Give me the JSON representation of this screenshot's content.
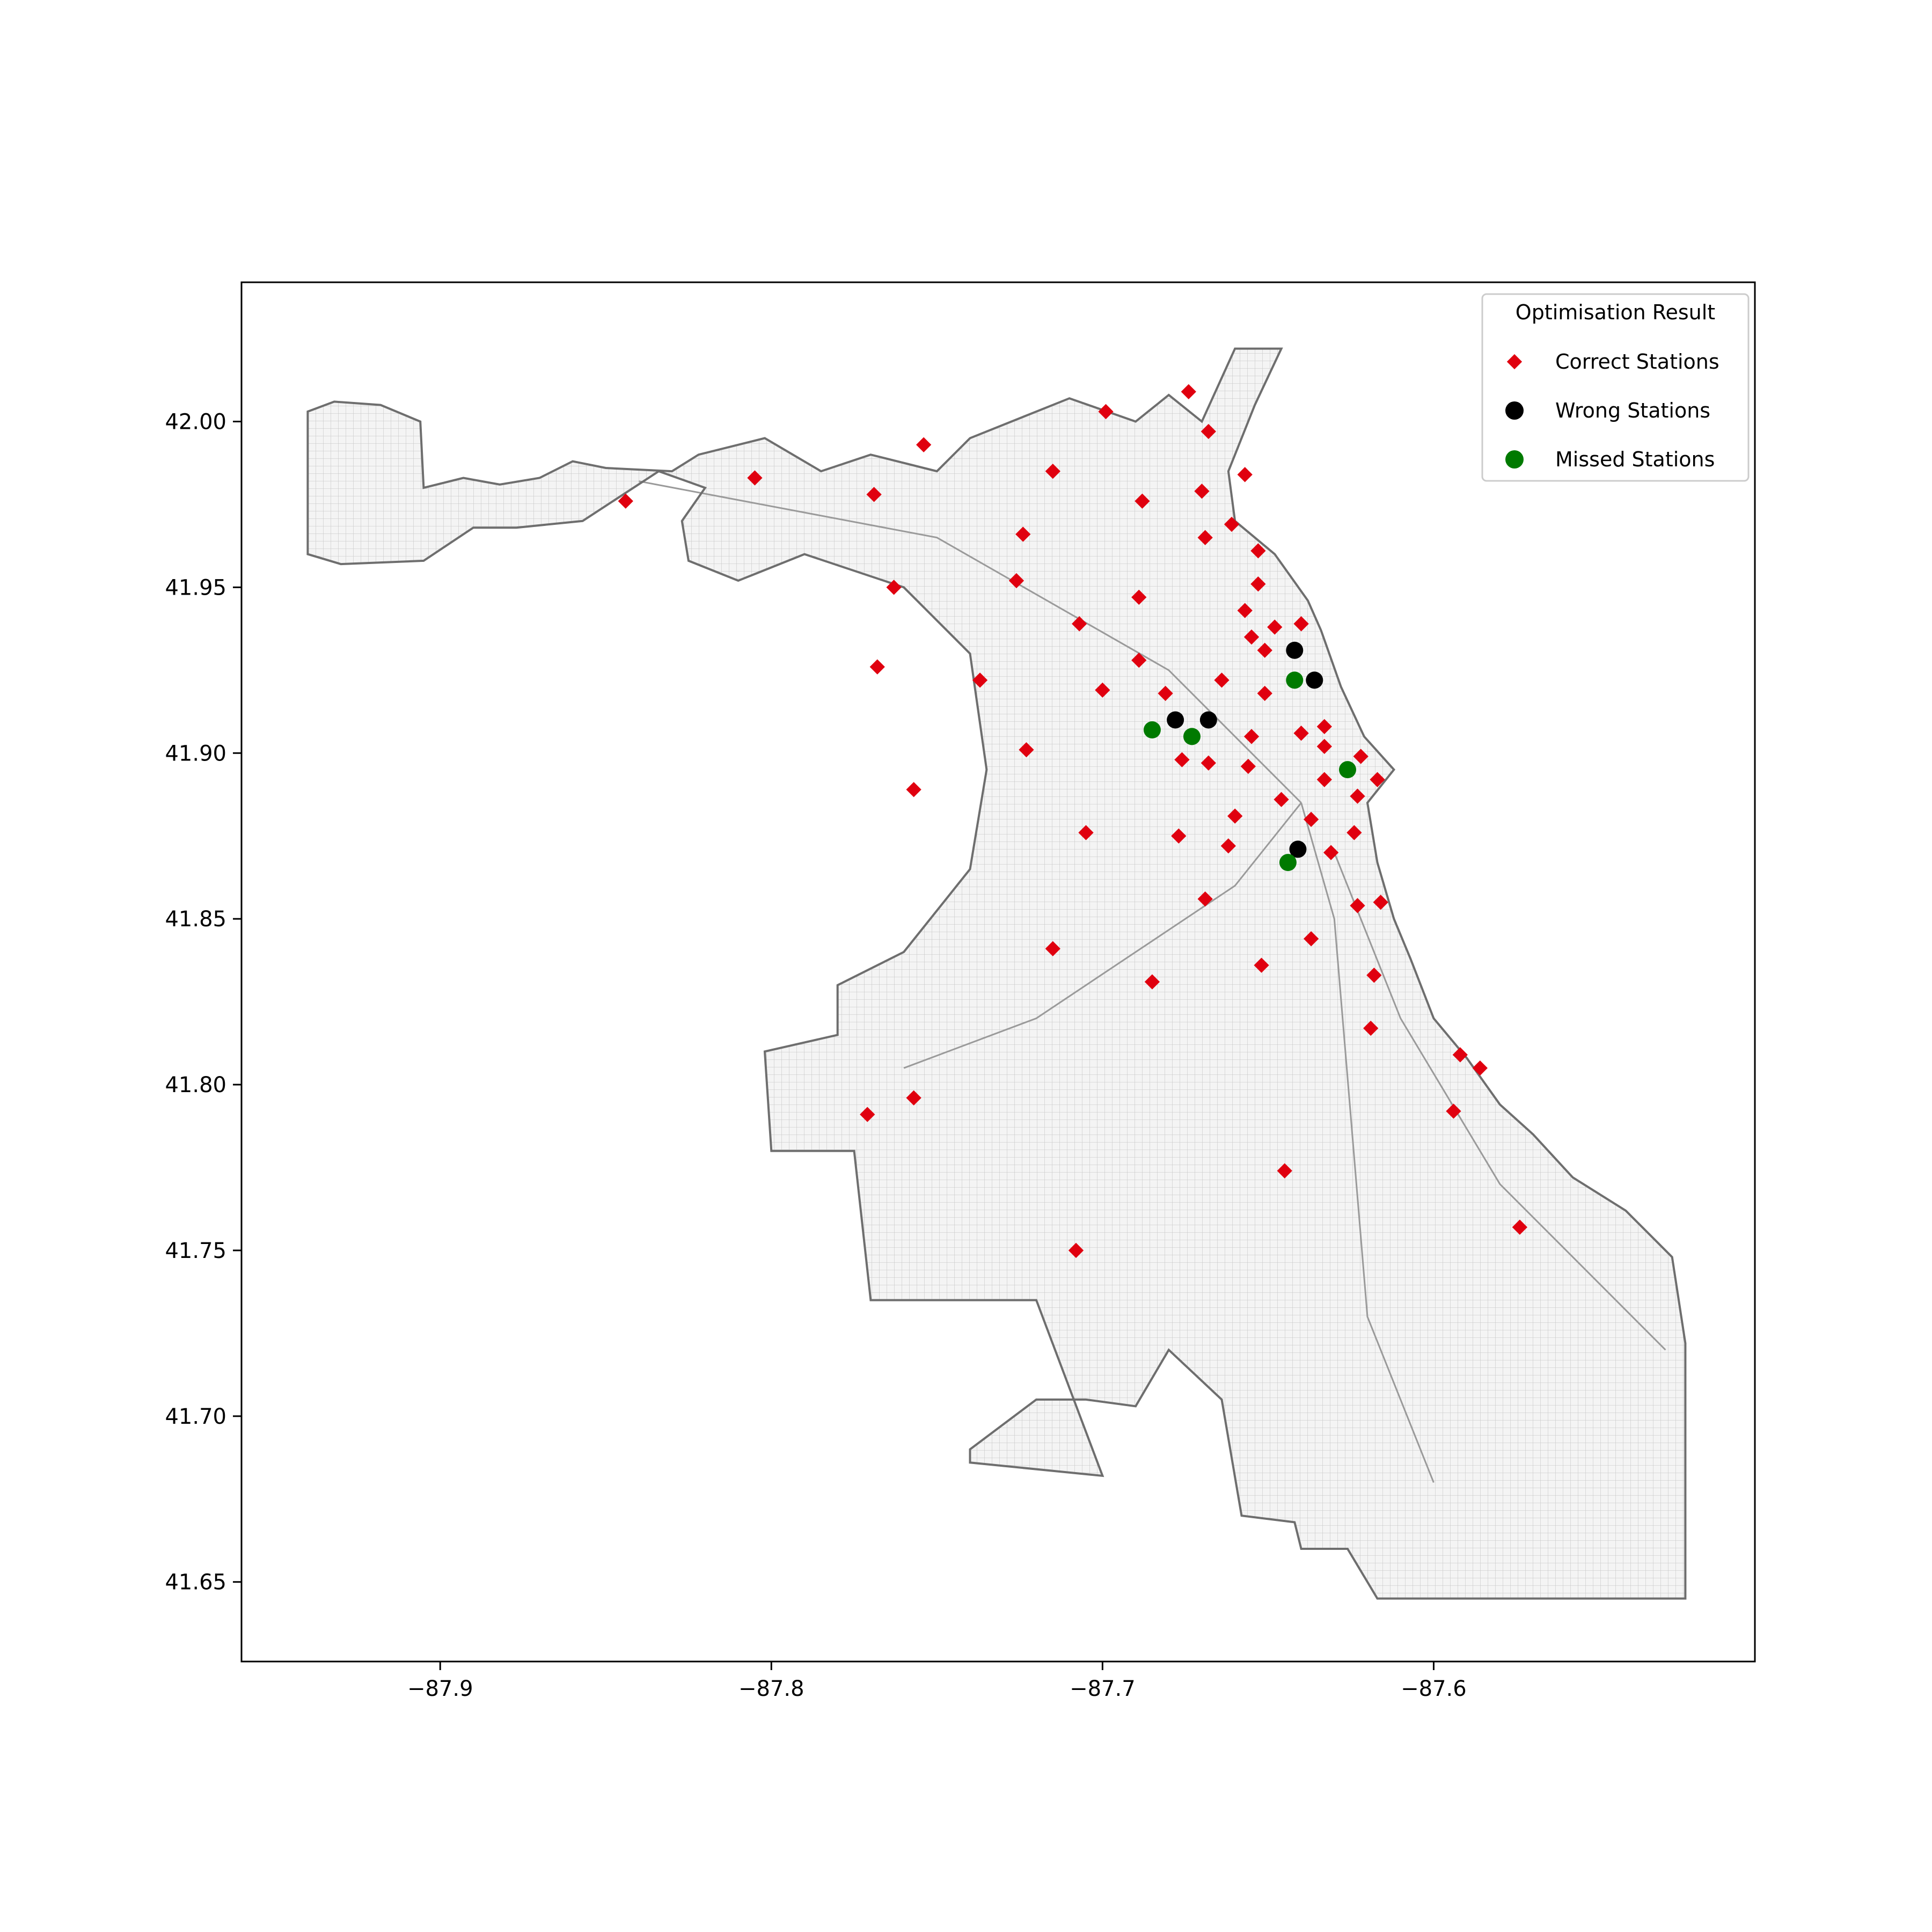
{
  "chart_data": {
    "type": "scatter",
    "title": "",
    "xlabel": "",
    "ylabel": "",
    "xlim": [
      -87.96,
      -87.503
    ],
    "ylim": [
      41.626,
      42.042
    ],
    "x_ticks": [
      -87.9,
      -87.8,
      -87.7,
      -87.6
    ],
    "x_tick_labels": [
      "−87.9",
      "−87.8",
      "−87.7",
      "−87.6"
    ],
    "y_ticks": [
      41.65,
      41.7,
      41.75,
      41.8,
      41.85,
      41.9,
      41.95,
      42.0
    ],
    "y_tick_labels": [
      "41.65",
      "41.70",
      "41.75",
      "41.80",
      "41.85",
      "41.90",
      "41.95",
      "42.00"
    ],
    "grid": false,
    "legend": {
      "title": "Optimisation Result",
      "placement": "top-right",
      "entries": [
        "Correct Stations",
        "Wrong Stations",
        "Missed Stations"
      ]
    },
    "basemap": {
      "boundary_color": "#6e6e6e",
      "street_color": "#c8c8c8",
      "boundary": [
        [
          -87.94,
          42.003
        ],
        [
          -87.932,
          42.006
        ],
        [
          -87.918,
          42.005
        ],
        [
          -87.906,
          42.0
        ],
        [
          -87.905,
          41.98
        ],
        [
          -87.893,
          41.983
        ],
        [
          -87.882,
          41.981
        ],
        [
          -87.87,
          41.983
        ],
        [
          -87.86,
          41.988
        ],
        [
          -87.85,
          41.986
        ],
        [
          -87.83,
          41.985
        ],
        [
          -87.822,
          41.99
        ],
        [
          -87.802,
          41.995
        ],
        [
          -87.785,
          41.985
        ],
        [
          -87.77,
          41.99
        ],
        [
          -87.75,
          41.985
        ],
        [
          -87.74,
          41.995
        ],
        [
          -87.71,
          42.007
        ],
        [
          -87.69,
          42.0
        ],
        [
          -87.68,
          42.008
        ],
        [
          -87.67,
          42.0
        ],
        [
          -87.66,
          42.022
        ],
        [
          -87.646,
          42.022
        ],
        [
          -87.654,
          42.005
        ],
        [
          -87.662,
          41.985
        ],
        [
          -87.66,
          41.97
        ],
        [
          -87.648,
          41.96
        ],
        [
          -87.638,
          41.946
        ],
        [
          -87.634,
          41.937
        ],
        [
          -87.628,
          41.92
        ],
        [
          -87.621,
          41.905
        ],
        [
          -87.612,
          41.895
        ],
        [
          -87.62,
          41.885
        ],
        [
          -87.617,
          41.867
        ],
        [
          -87.612,
          41.85
        ],
        [
          -87.607,
          41.838
        ],
        [
          -87.6,
          41.82
        ],
        [
          -87.59,
          41.808
        ],
        [
          -87.58,
          41.794
        ],
        [
          -87.57,
          41.785
        ],
        [
          -87.558,
          41.772
        ],
        [
          -87.542,
          41.762
        ],
        [
          -87.528,
          41.748
        ],
        [
          -87.524,
          41.722
        ],
        [
          -87.524,
          41.645
        ],
        [
          -87.617,
          41.645
        ],
        [
          -87.626,
          41.66
        ],
        [
          -87.64,
          41.66
        ],
        [
          -87.642,
          41.668
        ],
        [
          -87.658,
          41.67
        ],
        [
          -87.664,
          41.705
        ],
        [
          -87.68,
          41.72
        ],
        [
          -87.69,
          41.703
        ],
        [
          -87.705,
          41.705
        ],
        [
          -87.72,
          41.705
        ],
        [
          -87.74,
          41.69
        ],
        [
          -87.74,
          41.686
        ],
        [
          -87.7,
          41.682
        ],
        [
          -87.72,
          41.735
        ],
        [
          -87.77,
          41.735
        ],
        [
          -87.775,
          41.78
        ],
        [
          -87.8,
          41.78
        ],
        [
          -87.802,
          41.81
        ],
        [
          -87.78,
          41.815
        ],
        [
          -87.78,
          41.83
        ],
        [
          -87.76,
          41.84
        ],
        [
          -87.74,
          41.865
        ],
        [
          -87.735,
          41.895
        ],
        [
          -87.74,
          41.93
        ],
        [
          -87.76,
          41.95
        ],
        [
          -87.79,
          41.96
        ],
        [
          -87.81,
          41.952
        ],
        [
          -87.825,
          41.958
        ],
        [
          -87.827,
          41.97
        ],
        [
          -87.82,
          41.98
        ],
        [
          -87.834,
          41.985
        ],
        [
          -87.857,
          41.97
        ],
        [
          -87.877,
          41.968
        ],
        [
          -87.89,
          41.968
        ],
        [
          -87.905,
          41.958
        ],
        [
          -87.93,
          41.957
        ],
        [
          -87.94,
          41.96
        ],
        [
          -87.94,
          42.003
        ]
      ]
    },
    "series": [
      {
        "name": "Correct Stations",
        "marker": "diamond",
        "color": "#e0000f",
        "points": [
          [
            -87.674,
            42.009
          ],
          [
            -87.699,
            42.003
          ],
          [
            -87.668,
            41.997
          ],
          [
            -87.754,
            41.993
          ],
          [
            -87.805,
            41.983
          ],
          [
            -87.844,
            41.976
          ],
          [
            -87.769,
            41.978
          ],
          [
            -87.715,
            41.985
          ],
          [
            -87.657,
            41.984
          ],
          [
            -87.688,
            41.976
          ],
          [
            -87.67,
            41.979
          ],
          [
            -87.661,
            41.969
          ],
          [
            -87.724,
            41.966
          ],
          [
            -87.669,
            41.965
          ],
          [
            -87.653,
            41.961
          ],
          [
            -87.763,
            41.95
          ],
          [
            -87.726,
            41.952
          ],
          [
            -87.653,
            41.951
          ],
          [
            -87.689,
            41.947
          ],
          [
            -87.657,
            41.943
          ],
          [
            -87.707,
            41.939
          ],
          [
            -87.64,
            41.939
          ],
          [
            -87.648,
            41.938
          ],
          [
            -87.655,
            41.935
          ],
          [
            -87.651,
            41.931
          ],
          [
            -87.768,
            41.926
          ],
          [
            -87.689,
            41.928
          ],
          [
            -87.737,
            41.922
          ],
          [
            -87.664,
            41.922
          ],
          [
            -87.7,
            41.919
          ],
          [
            -87.681,
            41.918
          ],
          [
            -87.651,
            41.918
          ],
          [
            -87.655,
            41.905
          ],
          [
            -87.64,
            41.906
          ],
          [
            -87.633,
            41.908
          ],
          [
            -87.633,
            41.902
          ],
          [
            -87.723,
            41.901
          ],
          [
            -87.622,
            41.899
          ],
          [
            -87.676,
            41.898
          ],
          [
            -87.668,
            41.897
          ],
          [
            -87.656,
            41.896
          ],
          [
            -87.617,
            41.892
          ],
          [
            -87.633,
            41.892
          ],
          [
            -87.757,
            41.889
          ],
          [
            -87.623,
            41.887
          ],
          [
            -87.646,
            41.886
          ],
          [
            -87.66,
            41.881
          ],
          [
            -87.637,
            41.88
          ],
          [
            -87.705,
            41.876
          ],
          [
            -87.677,
            41.875
          ],
          [
            -87.624,
            41.876
          ],
          [
            -87.662,
            41.872
          ],
          [
            -87.631,
            41.87
          ],
          [
            -87.669,
            41.856
          ],
          [
            -87.623,
            41.854
          ],
          [
            -87.616,
            41.855
          ],
          [
            -87.637,
            41.844
          ],
          [
            -87.715,
            41.841
          ],
          [
            -87.652,
            41.836
          ],
          [
            -87.618,
            41.833
          ],
          [
            -87.685,
            41.831
          ],
          [
            -87.619,
            41.817
          ],
          [
            -87.592,
            41.809
          ],
          [
            -87.586,
            41.805
          ],
          [
            -87.757,
            41.796
          ],
          [
            -87.771,
            41.791
          ],
          [
            -87.594,
            41.792
          ],
          [
            -87.645,
            41.774
          ],
          [
            -87.574,
            41.757
          ],
          [
            -87.708,
            41.75
          ]
        ]
      },
      {
        "name": "Wrong Stations",
        "marker": "circle",
        "color": "#000000",
        "points": [
          [
            -87.642,
            41.931
          ],
          [
            -87.636,
            41.922
          ],
          [
            -87.678,
            41.91
          ],
          [
            -87.668,
            41.91
          ],
          [
            -87.641,
            41.871
          ]
        ]
      },
      {
        "name": "Missed Stations",
        "marker": "circle",
        "color": "#007a00",
        "points": [
          [
            -87.642,
            41.922
          ],
          [
            -87.685,
            41.907
          ],
          [
            -87.673,
            41.905
          ],
          [
            -87.626,
            41.895
          ],
          [
            -87.644,
            41.867
          ]
        ]
      }
    ]
  }
}
